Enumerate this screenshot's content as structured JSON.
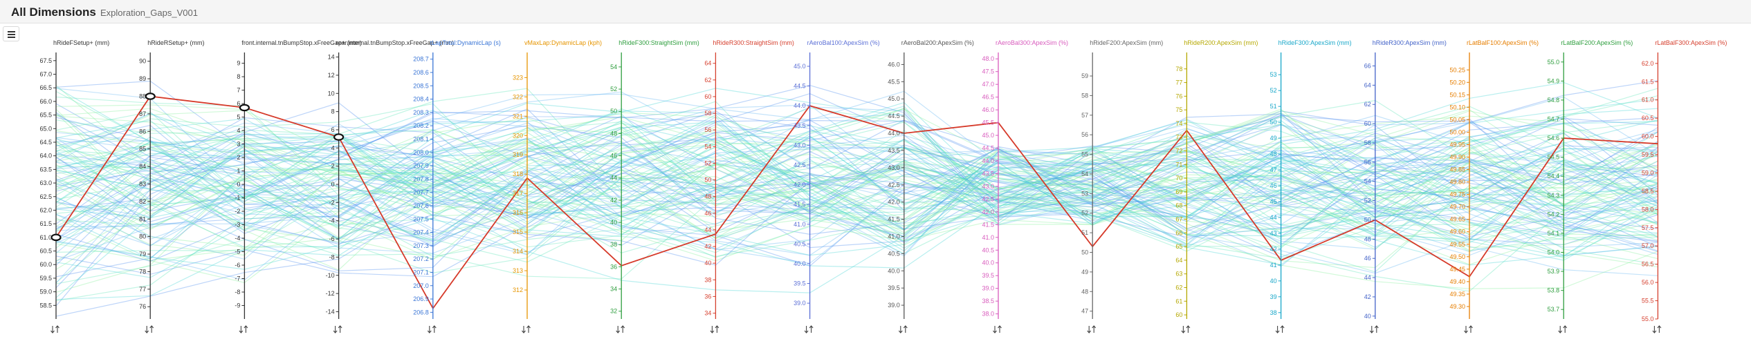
{
  "header": {
    "title": "All Dimensions",
    "subtitle": "Exploration_Gaps_V001"
  },
  "menu": {
    "icon": "hamburger-menu-icon"
  },
  "sort_icon": "sort-arrows-icon",
  "chart_data": {
    "type": "parallel-coordinates",
    "line_count": 120,
    "highlight_color": "#d63a2a",
    "line_colors": [
      "#4f8ff0",
      "#63b6f2",
      "#48d6d6",
      "#5fe6b8",
      "#86ee9a"
    ],
    "axes": [
      {
        "label": "hRideFSetup+ (mm)",
        "color": "#333333",
        "range": [
          58.0,
          67.8
        ],
        "ticks": [
          "58.5",
          "59.0",
          "59.5",
          "60.0",
          "60.5",
          "61.0",
          "61.5",
          "62.0",
          "62.5",
          "63.0",
          "63.5",
          "64.0",
          "64.5",
          "65.0",
          "65.5",
          "66.0",
          "66.5",
          "67.0",
          "67.5"
        ],
        "highlight": 61.0
      },
      {
        "label": "hRideRSetup+ (mm)",
        "color": "#333333",
        "range": [
          75.3,
          90.5
        ],
        "ticks": [
          "76",
          "77",
          "78",
          "79",
          "80",
          "81",
          "82",
          "83",
          "84",
          "85",
          "86",
          "87",
          "88",
          "89",
          "90"
        ],
        "highlight": 88.0
      },
      {
        "label": "front.internal.tnBumpStop.xFreeGap+ (mm)",
        "color": "#333333",
        "range": [
          -10.0,
          9.8
        ],
        "ticks": [
          "-9",
          "-8",
          "-7",
          "-6",
          "-5",
          "-4",
          "-3",
          "-2",
          "-1",
          "0",
          "1",
          "2",
          "3",
          "4",
          "5",
          "6",
          "7",
          "8",
          "9"
        ],
        "highlight": 5.7
      },
      {
        "label": "rear.internal.tnBumpStop.xFreeGap+ (mm)",
        "color": "#333333",
        "range": [
          -14.8,
          14.5
        ],
        "ticks": [
          "-14",
          "-12",
          "-10",
          "-8",
          "-6",
          "-4",
          "-2",
          "0",
          "2",
          "4",
          "6",
          "8",
          "10",
          "12",
          "14"
        ],
        "highlight": 5.2
      },
      {
        "label": "tLapTotal:DynamicLap (s)",
        "color": "#3b76d6",
        "range": [
          206.75,
          208.75
        ],
        "ticks": [
          "206.8",
          "206.9",
          "207.0",
          "207.1",
          "207.2",
          "207.3",
          "207.4",
          "207.5",
          "207.6",
          "207.7",
          "207.8",
          "207.9",
          "208.0",
          "208.1",
          "208.2",
          "208.3",
          "208.4",
          "208.5",
          "208.6",
          "208.7"
        ],
        "highlight": 206.83
      },
      {
        "label": "vMaxLap:DynamicLap (kph)",
        "color": "#e69500",
        "range": [
          310.5,
          324.3
        ],
        "ticks": [
          "312",
          "313",
          "314",
          "315",
          "316",
          "317",
          "318",
          "319",
          "320",
          "321",
          "322",
          "323"
        ],
        "highlight": 317.8
      },
      {
        "label": "hRideF300:StraightSim (mm)",
        "color": "#2e9e3e",
        "range": [
          31.3,
          55.3
        ],
        "ticks": [
          "32",
          "34",
          "36",
          "38",
          "40",
          "42",
          "44",
          "46",
          "48",
          "50",
          "52",
          "54"
        ],
        "highlight": 36.1
      },
      {
        "label": "hRideR300:StraightSim (mm)",
        "color": "#d6402f",
        "range": [
          33.3,
          65.3
        ],
        "ticks": [
          "34",
          "36",
          "38",
          "40",
          "42",
          "44",
          "46",
          "48",
          "50",
          "52",
          "54",
          "56",
          "58",
          "60",
          "62",
          "64"
        ],
        "highlight": 43.5
      },
      {
        "label": "rAeroBal100:ApexSim (%)",
        "color": "#5b6fd6",
        "range": [
          38.6,
          45.35
        ],
        "ticks": [
          "39.0",
          "39.5",
          "40.0",
          "40.5",
          "41.0",
          "41.5",
          "42.0",
          "42.5",
          "43.0",
          "43.5",
          "44.0",
          "44.5",
          "45.0"
        ],
        "highlight": 44.0
      },
      {
        "label": "rAeroBal200:ApexSim (%)",
        "color": "#555555",
        "range": [
          38.6,
          46.35
        ],
        "ticks": [
          "39.0",
          "39.5",
          "40.0",
          "40.5",
          "41.0",
          "41.5",
          "42.0",
          "42.5",
          "43.0",
          "43.5",
          "44.0",
          "44.5",
          "45.0",
          "45.5",
          "46.0"
        ],
        "highlight": 44.0
      },
      {
        "label": "rAeroBal300:ApexSim (%)",
        "color": "#d85bbd",
        "range": [
          37.8,
          48.25
        ],
        "ticks": [
          "38.0",
          "38.5",
          "39.0",
          "39.5",
          "40.0",
          "40.5",
          "41.0",
          "41.5",
          "42.0",
          "42.5",
          "43.0",
          "43.5",
          "44.0",
          "44.5",
          "45.0",
          "45.5",
          "46.0",
          "46.5",
          "47.0",
          "47.5",
          "48.0"
        ],
        "highlight": 45.5
      },
      {
        "label": "hRideF200:ApexSim (mm)",
        "color": "#666666",
        "range": [
          46.6,
          60.2
        ],
        "ticks": [
          "47",
          "48",
          "49",
          "50",
          "51",
          "52",
          "53",
          "54",
          "55",
          "56",
          "57",
          "58",
          "59"
        ],
        "highlight": 50.3
      },
      {
        "label": "hRideR200:ApexSim (mm)",
        "color": "#b5a800",
        "range": [
          59.7,
          79.2
        ],
        "ticks": [
          "60",
          "61",
          "62",
          "63",
          "64",
          "65",
          "66",
          "67",
          "68",
          "69",
          "70",
          "71",
          "72",
          "73",
          "74",
          "75",
          "76",
          "77",
          "78"
        ],
        "highlight": 73.5
      },
      {
        "label": "hRideF300:ApexSim (mm)",
        "color": "#18a7c9",
        "range": [
          37.6,
          54.4
        ],
        "ticks": [
          "38",
          "39",
          "40",
          "41",
          "42",
          "43",
          "44",
          "45",
          "46",
          "47",
          "48",
          "49",
          "50",
          "51",
          "52",
          "53"
        ],
        "highlight": 41.3
      },
      {
        "label": "hRideR300:ApexSim (mm)",
        "color": "#4363c8",
        "range": [
          39.7,
          67.4
        ],
        "ticks": [
          "40",
          "42",
          "44",
          "46",
          "48",
          "50",
          "52",
          "54",
          "56",
          "58",
          "60",
          "62",
          "64",
          "66"
        ],
        "highlight": 50.0
      },
      {
        "label": "rLatBalF100:ApexSim (%)",
        "color": "#e67e00",
        "range": [
          49.25,
          50.32
        ],
        "ticks": [
          "49.30",
          "49.35",
          "49.40",
          "49.45",
          "49.50",
          "49.55",
          "49.60",
          "49.65",
          "49.70",
          "49.75",
          "49.80",
          "49.85",
          "49.90",
          "49.95",
          "50.00",
          "50.05",
          "50.10",
          "50.15",
          "50.20",
          "50.25"
        ],
        "highlight": 49.42
      },
      {
        "label": "rLatBalF200:ApexSim (%)",
        "color": "#2e9e3e",
        "range": [
          53.65,
          55.05
        ],
        "ticks": [
          "53.7",
          "53.8",
          "53.9",
          "54.0",
          "54.1",
          "54.2",
          "54.3",
          "54.4",
          "54.5",
          "54.6",
          "54.7",
          "54.8",
          "54.9",
          "55.0"
        ],
        "highlight": 54.6
      },
      {
        "label": "rLatBalF300:ApexSim (%)",
        "color": "#d6402f",
        "range": [
          55.0,
          62.3
        ],
        "ticks": [
          "55.0",
          "55.5",
          "56.0",
          "56.5",
          "57.0",
          "57.5",
          "58.0",
          "58.5",
          "59.0",
          "59.5",
          "60.0",
          "60.5",
          "61.0",
          "61.5",
          "62.0"
        ],
        "highlight": 59.8
      }
    ]
  }
}
